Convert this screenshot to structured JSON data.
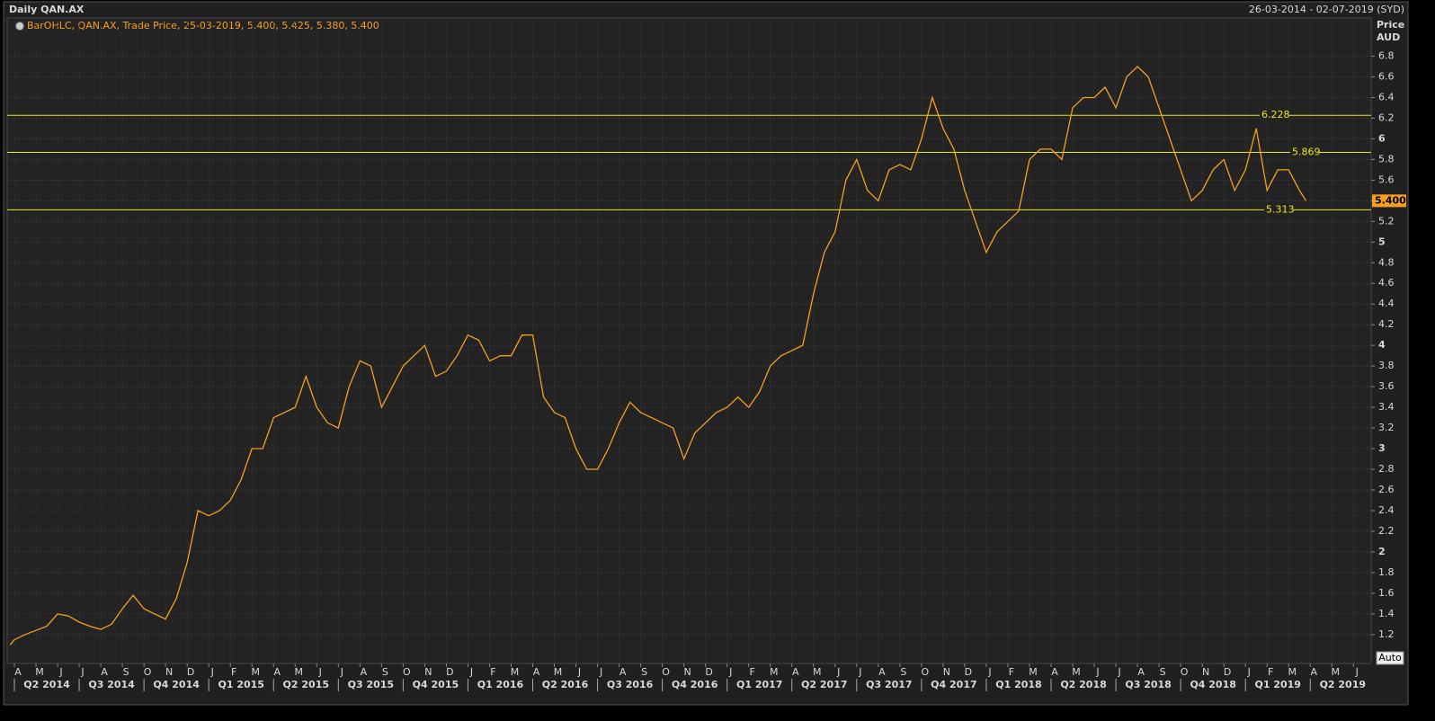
{
  "chart_data": {
    "type": "line",
    "title": "Daily QAN.AX",
    "date_range": "26-03-2014 - 02-07-2019 (SYD)",
    "y_axis_title": "Price",
    "y_axis_unit": "AUD",
    "scale_button": "Auto",
    "grid": true,
    "xlim": [
      -0.333,
      62.82
    ],
    "ylim": [
      0.92,
      7.17
    ],
    "yticks": [
      1.2,
      1.4,
      1.6,
      1.8,
      2,
      2.2,
      2.4,
      2.6,
      2.8,
      3,
      3.2,
      3.4,
      3.6,
      3.8,
      4,
      4.2,
      4.4,
      4.6,
      4.8,
      5,
      5.2,
      5.4,
      5.6,
      5.8,
      6,
      6.2,
      6.4,
      6.6,
      6.8
    ],
    "xticks": [
      {
        "value": 0,
        "label": "A"
      },
      {
        "value": 1,
        "label": "M"
      },
      {
        "value": 2,
        "label": "J"
      },
      {
        "value": 3,
        "label": "J"
      },
      {
        "value": 4,
        "label": "A"
      },
      {
        "value": 5,
        "label": "S"
      },
      {
        "value": 6,
        "label": "O"
      },
      {
        "value": 7,
        "label": "N"
      },
      {
        "value": 8,
        "label": "D"
      },
      {
        "value": 9,
        "label": "J"
      },
      {
        "value": 10,
        "label": "F"
      },
      {
        "value": 11,
        "label": "M"
      },
      {
        "value": 12,
        "label": "A"
      },
      {
        "value": 13,
        "label": "M"
      },
      {
        "value": 14,
        "label": "J"
      },
      {
        "value": 15,
        "label": "J"
      },
      {
        "value": 16,
        "label": "A"
      },
      {
        "value": 17,
        "label": "S"
      },
      {
        "value": 18,
        "label": "O"
      },
      {
        "value": 19,
        "label": "N"
      },
      {
        "value": 20,
        "label": "D"
      },
      {
        "value": 21,
        "label": "J"
      },
      {
        "value": 22,
        "label": "F"
      },
      {
        "value": 23,
        "label": "M"
      },
      {
        "value": 24,
        "label": "A"
      },
      {
        "value": 25,
        "label": "M"
      },
      {
        "value": 26,
        "label": "J"
      },
      {
        "value": 27,
        "label": "J"
      },
      {
        "value": 28,
        "label": "A"
      },
      {
        "value": 29,
        "label": "S"
      },
      {
        "value": 30,
        "label": "O"
      },
      {
        "value": 31,
        "label": "N"
      },
      {
        "value": 32,
        "label": "D"
      },
      {
        "value": 33,
        "label": "J"
      },
      {
        "value": 34,
        "label": "F"
      },
      {
        "value": 35,
        "label": "M"
      },
      {
        "value": 36,
        "label": "A"
      },
      {
        "value": 37,
        "label": "M"
      },
      {
        "value": 38,
        "label": "J"
      },
      {
        "value": 39,
        "label": "J"
      },
      {
        "value": 40,
        "label": "A"
      },
      {
        "value": 41,
        "label": "S"
      },
      {
        "value": 42,
        "label": "O"
      },
      {
        "value": 43,
        "label": "N"
      },
      {
        "value": 44,
        "label": "D"
      },
      {
        "value": 45,
        "label": "J"
      },
      {
        "value": 46,
        "label": "F"
      },
      {
        "value": 47,
        "label": "M"
      },
      {
        "value": 48,
        "label": "A"
      },
      {
        "value": 49,
        "label": "M"
      },
      {
        "value": 50,
        "label": "J"
      },
      {
        "value": 51,
        "label": "J"
      },
      {
        "value": 52,
        "label": "A"
      },
      {
        "value": 53,
        "label": "S"
      },
      {
        "value": 54,
        "label": "O"
      },
      {
        "value": 55,
        "label": "N"
      },
      {
        "value": 56,
        "label": "D"
      },
      {
        "value": 57,
        "label": "J"
      },
      {
        "value": 58,
        "label": "F"
      },
      {
        "value": 59,
        "label": "M"
      },
      {
        "value": 60,
        "label": "A"
      },
      {
        "value": 61,
        "label": "M"
      },
      {
        "value": 62,
        "label": "J"
      }
    ],
    "quarter_labels": [
      {
        "value": 1.5,
        "label": "Q2 2014"
      },
      {
        "value": 4.5,
        "label": "Q3 2014"
      },
      {
        "value": 7.5,
        "label": "Q4 2014"
      },
      {
        "value": 10.5,
        "label": "Q1 2015"
      },
      {
        "value": 13.5,
        "label": "Q2 2015"
      },
      {
        "value": 16.5,
        "label": "Q3 2015"
      },
      {
        "value": 19.5,
        "label": "Q4 2015"
      },
      {
        "value": 22.5,
        "label": "Q1 2016"
      },
      {
        "value": 25.5,
        "label": "Q2 2016"
      },
      {
        "value": 28.5,
        "label": "Q3 2016"
      },
      {
        "value": 31.5,
        "label": "Q4 2016"
      },
      {
        "value": 34.5,
        "label": "Q1 2017"
      },
      {
        "value": 37.5,
        "label": "Q2 2017"
      },
      {
        "value": 40.5,
        "label": "Q3 2017"
      },
      {
        "value": 43.5,
        "label": "Q4 2017"
      },
      {
        "value": 46.5,
        "label": "Q1 2018"
      },
      {
        "value": 49.5,
        "label": "Q2 2018"
      },
      {
        "value": 52.5,
        "label": "Q3 2018"
      },
      {
        "value": 55.5,
        "label": "Q4 2018"
      },
      {
        "value": 58.5,
        "label": "Q1 2019"
      },
      {
        "value": 61.5,
        "label": "Q2 2019"
      }
    ],
    "levels": [
      6.228,
      5.869,
      5.313
    ],
    "level_color": "#e8e820",
    "last_price": {
      "value": 5.4,
      "label": "5.400"
    },
    "series": [
      {
        "name": "BarOHLC, QAN.AX, Trade Price, 25-03-2019, 5.400, 5.425, 5.380, 5.400",
        "color": "#f5a020",
        "x": [
          -0.2,
          0,
          0.5,
          1,
          1.5,
          2,
          2.5,
          3,
          3.5,
          4,
          4.5,
          5,
          5.5,
          6,
          6.5,
          7,
          7.5,
          8,
          8.5,
          9,
          9.5,
          10,
          10.5,
          11,
          11.5,
          12,
          12.5,
          13,
          13.5,
          14,
          14.5,
          15,
          15.5,
          16,
          16.5,
          17,
          17.5,
          18,
          18.5,
          19,
          19.5,
          20,
          20.5,
          21,
          21.5,
          22,
          22.5,
          23,
          23.5,
          24,
          24.5,
          25,
          25.5,
          26,
          26.5,
          27,
          27.5,
          28,
          28.5,
          29,
          29.5,
          30,
          30.5,
          31,
          31.5,
          32,
          32.5,
          33,
          33.5,
          34,
          34.5,
          35,
          35.5,
          36,
          36.5,
          37,
          37.5,
          38,
          38.5,
          39,
          39.5,
          40,
          40.5,
          41,
          41.5,
          42,
          42.5,
          43,
          43.5,
          44,
          44.5,
          45,
          45.5,
          46,
          46.5,
          47,
          47.5,
          48,
          48.5,
          49,
          49.5,
          50,
          50.5,
          51,
          51.5,
          52,
          52.5,
          53,
          53.5,
          54,
          54.5,
          55,
          55.5,
          56,
          56.5,
          57,
          57.5,
          58,
          58.5,
          59,
          59.5,
          59.8
        ],
        "values": [
          1.1,
          1.15,
          1.2,
          1.24,
          1.28,
          1.4,
          1.38,
          1.32,
          1.28,
          1.25,
          1.3,
          1.45,
          1.58,
          1.45,
          1.4,
          1.35,
          1.55,
          1.9,
          2.4,
          2.35,
          2.4,
          2.5,
          2.7,
          3.0,
          3.0,
          3.3,
          3.35,
          3.4,
          3.7,
          3.4,
          3.25,
          3.2,
          3.6,
          3.85,
          3.8,
          3.4,
          3.6,
          3.8,
          3.9,
          4.0,
          3.7,
          3.75,
          3.9,
          4.1,
          4.05,
          3.85,
          3.9,
          3.9,
          4.1,
          4.1,
          3.5,
          3.35,
          3.3,
          3.0,
          2.8,
          2.8,
          3.0,
          3.25,
          3.45,
          3.35,
          3.3,
          3.25,
          3.2,
          2.9,
          3.15,
          3.25,
          3.35,
          3.4,
          3.5,
          3.4,
          3.55,
          3.8,
          3.9,
          3.95,
          4.0,
          4.5,
          4.9,
          5.1,
          5.6,
          5.8,
          5.5,
          5.4,
          5.7,
          5.75,
          5.7,
          6.0,
          6.4,
          6.1,
          5.9,
          5.5,
          5.2,
          4.9,
          5.1,
          5.2,
          5.3,
          5.8,
          5.9,
          5.9,
          5.8,
          6.3,
          6.4,
          6.4,
          6.5,
          6.3,
          6.6,
          6.7,
          6.6,
          6.3,
          6.0,
          5.7,
          5.4,
          5.5,
          5.7,
          5.8,
          5.5,
          5.7,
          6.1,
          5.5,
          5.7,
          5.7,
          5.5,
          5.4
        ]
      }
    ]
  }
}
